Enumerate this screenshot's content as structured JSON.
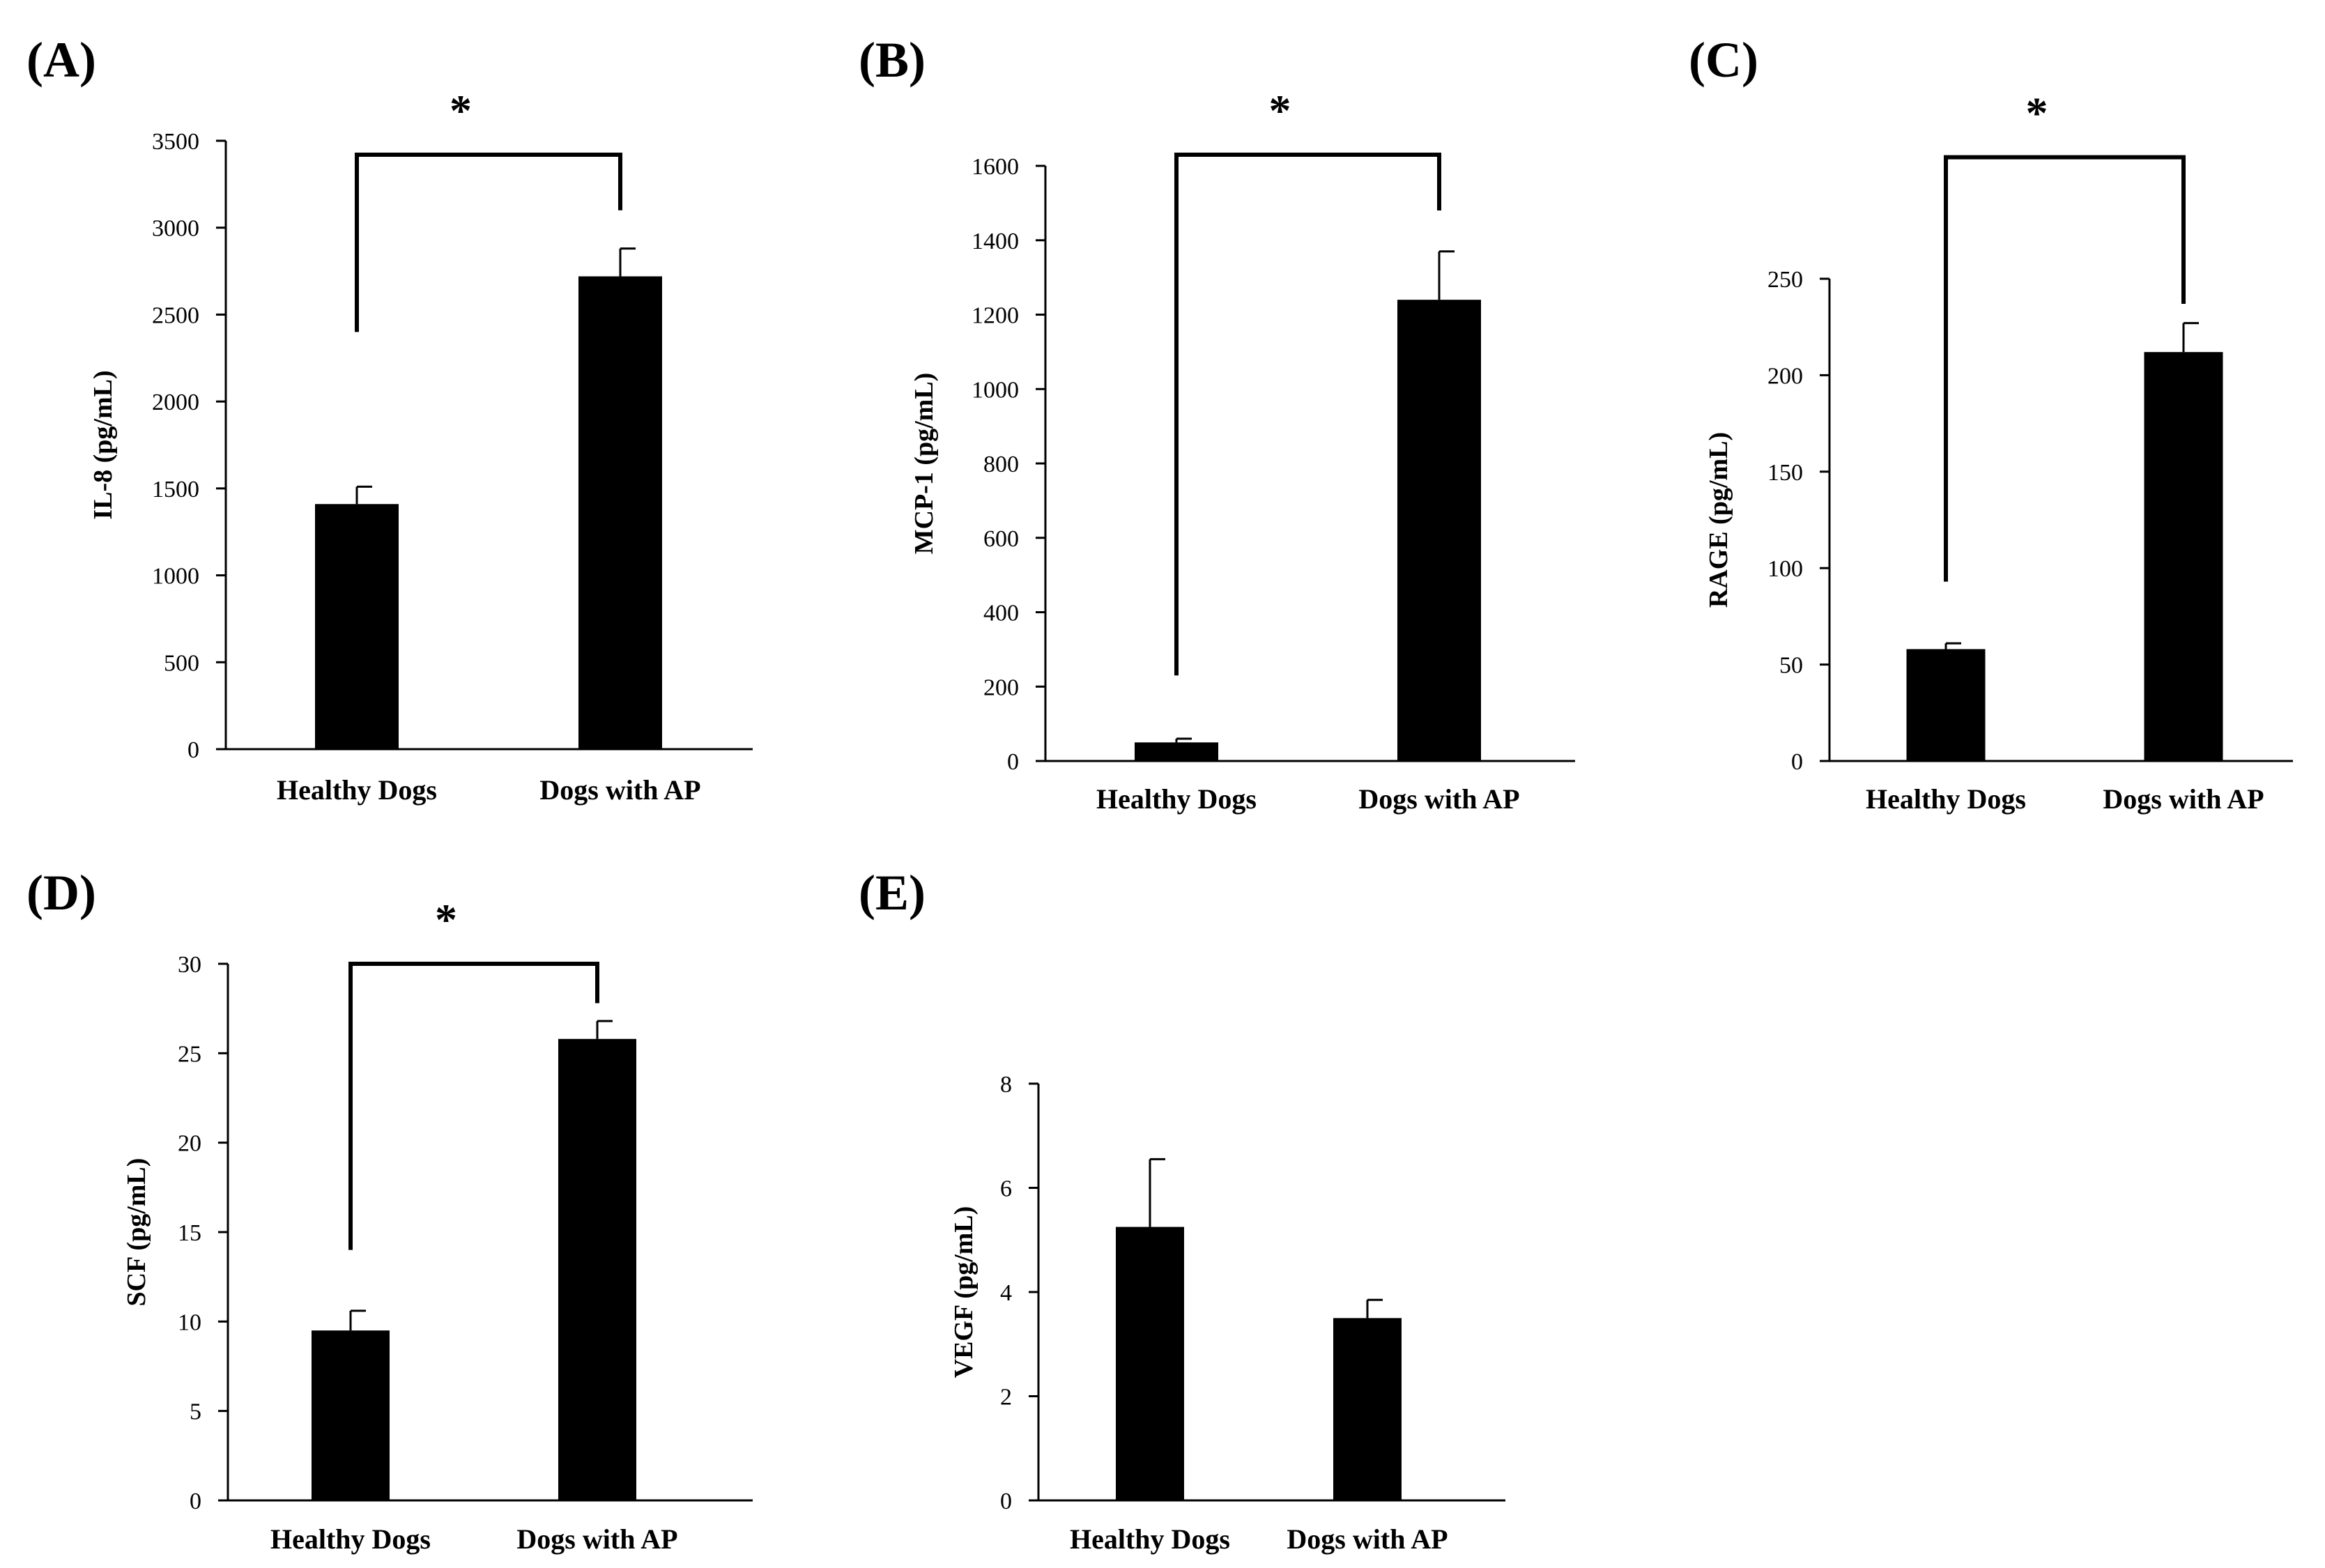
{
  "chart_data": [
    {
      "type": "bar",
      "panel": "(A)",
      "ylabel": "IL-8  (pg/mL)",
      "categories": [
        "Healthy Dogs",
        "Dogs with AP"
      ],
      "values": [
        1410,
        2720
      ],
      "errors": [
        100,
        160
      ],
      "ylim": [
        0,
        3500
      ],
      "yticks": [
        0,
        500,
        1000,
        1500,
        2000,
        2500,
        3000,
        3500
      ],
      "significance": {
        "marker": "*",
        "bracket_y": 3420,
        "left_drop": 2400,
        "right_drop": 3100
      }
    },
    {
      "type": "bar",
      "panel": "(B)",
      "ylabel": "MCP-1 (pg/mL)",
      "categories": [
        "Healthy Dogs",
        "Dogs with AP"
      ],
      "values": [
        50,
        1240
      ],
      "errors": [
        10,
        130
      ],
      "ylim": [
        0,
        1600
      ],
      "yticks": [
        0,
        200,
        400,
        600,
        800,
        1000,
        1200,
        1400,
        1600
      ],
      "significance": {
        "marker": "*",
        "bracket_y": 1630,
        "left_drop": 230,
        "right_drop": 1480
      }
    },
    {
      "type": "bar",
      "panel": "(C)",
      "ylabel": "RAGE  (pg/mL)",
      "categories": [
        "Healthy Dogs",
        "Dogs with AP"
      ],
      "values": [
        58,
        212
      ],
      "errors": [
        3,
        15
      ],
      "ylim": [
        0,
        250
      ],
      "yticks": [
        0,
        50,
        100,
        150,
        200,
        250
      ],
      "significance": {
        "marker": "*",
        "bracket_y": 313,
        "left_drop": 93,
        "right_drop": 237
      }
    },
    {
      "type": "bar",
      "panel": "(D)",
      "ylabel": "SCF (pg/mL)",
      "categories": [
        "Healthy Dogs",
        "Dogs with AP"
      ],
      "values": [
        9.5,
        25.8
      ],
      "errors": [
        1.1,
        1.0
      ],
      "ylim": [
        0,
        30
      ],
      "yticks": [
        0,
        5,
        10,
        15,
        20,
        25,
        30
      ],
      "significance": {
        "marker": "*",
        "bracket_y": 30,
        "left_drop": 14,
        "right_drop": 27.8
      }
    },
    {
      "type": "bar",
      "panel": "(E)",
      "ylabel": "VEGF  (pg/mL)",
      "categories": [
        "Healthy Dogs",
        "Dogs with AP"
      ],
      "values": [
        5.25,
        3.5
      ],
      "errors": [
        1.3,
        0.35
      ],
      "ylim": [
        0,
        8
      ],
      "yticks": [
        0,
        2,
        4,
        6,
        8
      ],
      "significance": null
    }
  ],
  "style": {
    "bar_color": "#000000",
    "axis_color": "#000000",
    "background": "#ffffff"
  }
}
